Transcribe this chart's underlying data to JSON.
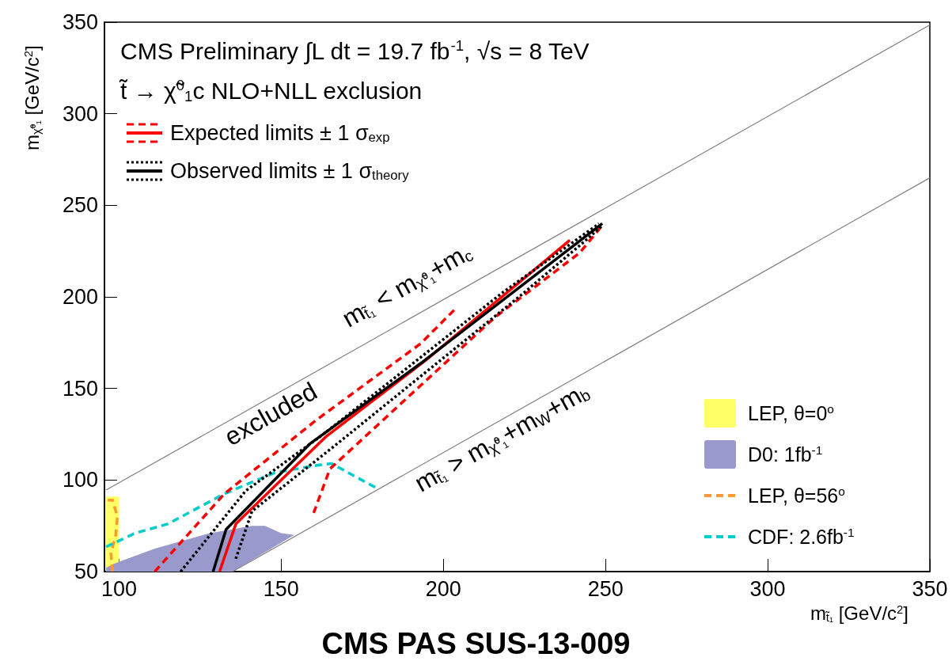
{
  "chart_data": {
    "type": "line",
    "title": "CMS PAS SUS-13-009",
    "xlabel": "m$_{t̃₁}$ [GeV/c$^{2}$]",
    "ylabel": "m$_{χ̃⁰₁}$ [GeV/c$^{2}$]",
    "xlim": [
      95.5,
      350
    ],
    "ylim": [
      50,
      350
    ],
    "xticks": [
      100,
      150,
      200,
      250,
      300,
      350
    ],
    "yticks": [
      50,
      100,
      150,
      200,
      250,
      300,
      350
    ],
    "grid": false,
    "legend": "left",
    "marker": "none",
    "annotations": [
      "CMS Preliminary ∫L dt = 19.7 fb$^{-1}$, √s = 8 TeV",
      "t̃ → χ̃$^{0}$$_{1}$c NLO+NLL exclusion",
      "excluded",
      "m$_{t̃₁}$ < m$_{χ̃⁰₁}$+m$_{c}$",
      "m$_{t̃₁}$ > m$_{χ̃⁰₁}$+m$_{W}$+m$_{b}$"
    ],
    "series": [
      {
        "type": "area",
        "name": "LEP, θ=0$^{o}$",
        "color": "#ffff66",
        "x": [
          96,
          96,
          100,
          100
        ],
        "values": [
          50,
          91,
          91,
          50
        ]
      },
      {
        "type": "area",
        "name": "D0: 1fb$^{-1}$",
        "color": "#9999cc",
        "x": [
          96,
          96,
          98,
          111,
          128,
          141,
          145,
          150,
          154,
          135
        ],
        "values": [
          50,
          52,
          54,
          62.5,
          71,
          75,
          75,
          71,
          70,
          50
        ]
      },
      {
        "name": "LEP, θ=56$^{o}$",
        "color": "#ff9933",
        "line_style": "dashed",
        "x": [
          98,
          97.5,
          99,
          99.5,
          98,
          96.5
        ],
        "values": [
          50,
          60,
          70,
          80,
          89,
          89
        ]
      },
      {
        "name": "CDF: 2.6fb$^{-1}$",
        "color": "#00cccc",
        "line_style": "dashed",
        "x": [
          96,
          105,
          115,
          132.5,
          148,
          161,
          165.5,
          179.5
        ],
        "values": [
          63.5,
          71,
          76,
          92.5,
          104,
          108,
          109,
          95.5
        ]
      },
      {
        "color": "#808080",
        "line_style": "solid",
        "x": [
          96,
          350
        ],
        "values": [
          94.5,
          348.5
        ]
      },
      {
        "color": "#808080",
        "line_style": "solid",
        "x": [
          135,
          350
        ],
        "values": [
          50,
          265
        ]
      },
      {
        "name": "Expected limits ± 1 σ$_{exp}$",
        "color": "#ff0000",
        "line_style": "solid",
        "x": [
          131,
          136,
          164,
          195,
          239
        ],
        "values": [
          50,
          76,
          124,
          166,
          231
        ]
      },
      {
        "color": "#ff0000",
        "line_style": "dashed",
        "x": [
          111,
          132.5,
          161,
          193,
          204
        ],
        "values": [
          50,
          92.5,
          133,
          174.5,
          194
        ]
      },
      {
        "color": "#ff0000",
        "line_style": "dashed",
        "x": [
          160,
          165,
          192,
          216,
          242,
          249
        ],
        "values": [
          82,
          106,
          150,
          189,
          224,
          239
        ]
      },
      {
        "name": "Observed limits ± 1 σ$_{theory}$",
        "color": "#000000",
        "line_style": "solid",
        "x": [
          129,
          133,
          159,
          194,
          249
        ],
        "values": [
          50,
          73,
          120,
          165,
          240
        ]
      },
      {
        "color": "#000000",
        "line_style": "dotted",
        "x": [
          119,
          139,
          163,
          218,
          248
        ],
        "values": [
          50,
          94,
          125,
          202,
          240
        ]
      },
      {
        "color": "#000000",
        "line_style": "dotted",
        "x": [
          136,
          141,
          166,
          224,
          244,
          249
        ],
        "values": [
          57,
          83,
          118,
          201,
          231,
          239
        ]
      }
    ]
  }
}
